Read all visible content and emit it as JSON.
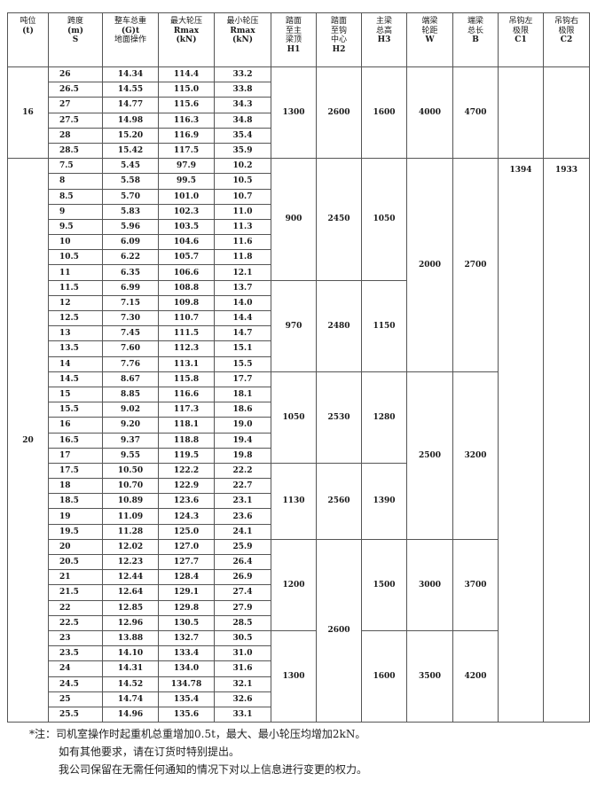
{
  "header": {
    "columns": [
      {
        "lines": [
          "吨位",
          "(t)"
        ]
      },
      {
        "lines": [
          "跨度",
          "(m)",
          "S"
        ]
      },
      {
        "lines": [
          "整车总重",
          "(G)t",
          "地面操作"
        ]
      },
      {
        "lines": [
          "最大轮压",
          "Rmax",
          "(kN)"
        ]
      },
      {
        "lines": [
          "最小轮压",
          "Rmax",
          "(kN)"
        ]
      },
      {
        "lines": [
          "踏面",
          "至主",
          "梁顶",
          "H1"
        ]
      },
      {
        "lines": [
          "踏面",
          "至钩",
          "中心",
          "H2"
        ]
      },
      {
        "lines": [
          "主梁",
          "总高",
          "H3"
        ]
      },
      {
        "lines": [
          "端梁",
          "轮距",
          "W"
        ]
      },
      {
        "lines": [
          "端梁",
          "总长",
          "B"
        ]
      },
      {
        "lines": [
          "吊钩左",
          "极限",
          "C1"
        ]
      },
      {
        "lines": [
          "吊钩右",
          "极限",
          "C2"
        ]
      }
    ]
  },
  "groups": [
    {
      "tonnage": "16",
      "rows": [
        [
          "26",
          "14.34",
          "114.4",
          "33.2"
        ],
        [
          "26.5",
          "14.55",
          "115.0",
          "33.8"
        ],
        [
          "27",
          "14.77",
          "115.6",
          "34.3"
        ],
        [
          "27.5",
          "14.98",
          "116.3",
          "34.8"
        ],
        [
          "28",
          "15.20",
          "116.9",
          "35.4"
        ],
        [
          "28.5",
          "15.42",
          "117.5",
          "35.9"
        ]
      ],
      "spec": {
        "h1": [
          {
            "value": "1300",
            "rows": 6
          }
        ],
        "h2": [
          {
            "value": "2600",
            "rows": 6
          }
        ],
        "h3": [
          {
            "value": "1600",
            "rows": 6
          }
        ],
        "w": [
          {
            "value": "4000",
            "rows": 6
          }
        ],
        "b": [
          {
            "value": "4700",
            "rows": 6
          }
        ],
        "c1": [
          {
            "value": "",
            "rows": 6
          }
        ],
        "c2": [
          {
            "value": "",
            "rows": 6
          }
        ]
      }
    },
    {
      "tonnage": "20",
      "rows": [
        [
          "7.5",
          "5.45",
          "97.9",
          "10.2"
        ],
        [
          "8",
          "5.58",
          "99.5",
          "10.5"
        ],
        [
          "8.5",
          "5.70",
          "101.0",
          "10.7"
        ],
        [
          "9",
          "5.83",
          "102.3",
          "11.0"
        ],
        [
          "9.5",
          "5.96",
          "103.5",
          "11.3"
        ],
        [
          "10",
          "6.09",
          "104.6",
          "11.6"
        ],
        [
          "10.5",
          "6.22",
          "105.7",
          "11.8"
        ],
        [
          "11",
          "6.35",
          "106.6",
          "12.1"
        ],
        [
          "11.5",
          "6.99",
          "108.8",
          "13.7"
        ],
        [
          "12",
          "7.15",
          "109.8",
          "14.0"
        ],
        [
          "12.5",
          "7.30",
          "110.7",
          "14.4"
        ],
        [
          "13",
          "7.45",
          "111.5",
          "14.7"
        ],
        [
          "13.5",
          "7.60",
          "112.3",
          "15.1"
        ],
        [
          "14",
          "7.76",
          "113.1",
          "15.5"
        ],
        [
          "14.5",
          "8.67",
          "115.8",
          "17.7"
        ],
        [
          "15",
          "8.85",
          "116.6",
          "18.1"
        ],
        [
          "15.5",
          "9.02",
          "117.3",
          "18.6"
        ],
        [
          "16",
          "9.20",
          "118.1",
          "19.0"
        ],
        [
          "16.5",
          "9.37",
          "118.8",
          "19.4"
        ],
        [
          "17",
          "9.55",
          "119.5",
          "19.8"
        ],
        [
          "17.5",
          "10.50",
          "122.2",
          "22.2"
        ],
        [
          "18",
          "10.70",
          "122.9",
          "22.7"
        ],
        [
          "18.5",
          "10.89",
          "123.6",
          "23.1"
        ],
        [
          "19",
          "11.09",
          "124.3",
          "23.6"
        ],
        [
          "19.5",
          "11.28",
          "125.0",
          "24.1"
        ],
        [
          "20",
          "12.02",
          "127.0",
          "25.9"
        ],
        [
          "20.5",
          "12.23",
          "127.7",
          "26.4"
        ],
        [
          "21",
          "12.44",
          "128.4",
          "26.9"
        ],
        [
          "21.5",
          "12.64",
          "129.1",
          "27.4"
        ],
        [
          "22",
          "12.85",
          "129.8",
          "27.9"
        ],
        [
          "22.5",
          "12.96",
          "130.5",
          "28.5"
        ],
        [
          "23",
          "13.88",
          "132.7",
          "30.5"
        ],
        [
          "23.5",
          "14.10",
          "133.4",
          "31.0"
        ],
        [
          "24",
          "14.31",
          "134.0",
          "31.6"
        ],
        [
          "24.5",
          "14.52",
          "134.78",
          "32.1"
        ],
        [
          "25",
          "14.74",
          "135.4",
          "32.6"
        ],
        [
          "25.5",
          "14.96",
          "135.6",
          "33.1"
        ]
      ],
      "spec": {
        "h1": [
          {
            "value": "900",
            "rows": 8
          },
          {
            "value": "970",
            "rows": 6
          },
          {
            "value": "1050",
            "rows": 6
          },
          {
            "value": "1130",
            "rows": 5
          },
          {
            "value": "1200",
            "rows": 6
          },
          {
            "value": "1300",
            "rows": 6
          }
        ],
        "h2": [
          {
            "value": "2450",
            "rows": 8
          },
          {
            "value": "2480",
            "rows": 6
          },
          {
            "value": "2530",
            "rows": 6
          },
          {
            "value": "2560",
            "rows": 5
          },
          {
            "value": "2600",
            "rows": 12
          }
        ],
        "h3": [
          {
            "value": "1050",
            "rows": 8
          },
          {
            "value": "1150",
            "rows": 6
          },
          {
            "value": "1280",
            "rows": 6
          },
          {
            "value": "1390",
            "rows": 5
          },
          {
            "value": "1500",
            "rows": 6
          },
          {
            "value": "1600",
            "rows": 6
          }
        ],
        "w": [
          {
            "value": "2000",
            "rows": 14
          },
          {
            "value": "2500",
            "rows": 11
          },
          {
            "value": "3000",
            "rows": 6
          },
          {
            "value": "3500",
            "rows": 6
          }
        ],
        "b": [
          {
            "value": "2700",
            "rows": 14
          },
          {
            "value": "3200",
            "rows": 11
          },
          {
            "value": "3700",
            "rows": 6
          },
          {
            "value": "4200",
            "rows": 6
          }
        ],
        "c1": [
          {
            "value": "1394",
            "rows": 37
          }
        ],
        "c2": [
          {
            "value": "1933",
            "rows": 37
          }
        ]
      }
    }
  ],
  "notes": [
    "*注：司机室操作时起重机总重增加0.5t，最大、最小轮压均增加2kN。",
    "如有其他要求，请在订货时特别提出。",
    "我公司保留在无需任何通知的情况下对以上信息进行变更的权力。"
  ]
}
